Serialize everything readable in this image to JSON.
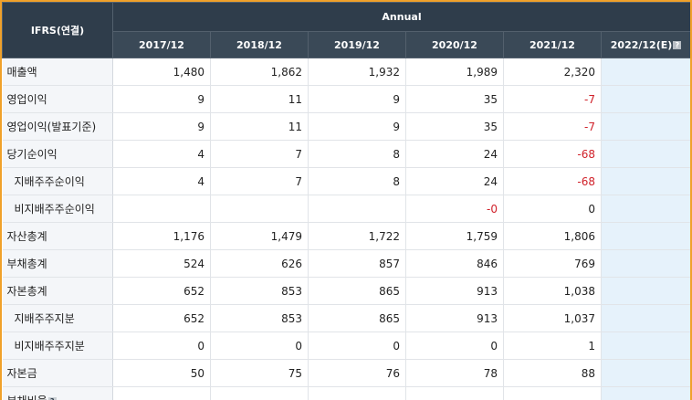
{
  "table": {
    "corner_label": "IFRS(연결)",
    "period_group": "Annual",
    "columns": [
      "2017/12",
      "2018/12",
      "2019/12",
      "2020/12",
      "2021/12",
      "2022/12(E)"
    ],
    "rows": [
      {
        "label": "매출액",
        "sub": false,
        "values": [
          "1,480",
          "1,862",
          "1,932",
          "1,989",
          "2,320",
          ""
        ]
      },
      {
        "label": "영업이익",
        "sub": false,
        "values": [
          "9",
          "11",
          "9",
          "35",
          "-7",
          ""
        ]
      },
      {
        "label": "영업이익(발표기준)",
        "sub": false,
        "values": [
          "9",
          "11",
          "9",
          "35",
          "-7",
          ""
        ]
      },
      {
        "label": "당기순이익",
        "sub": false,
        "values": [
          "4",
          "7",
          "8",
          "24",
          "-68",
          ""
        ]
      },
      {
        "label": "지배주주순이익",
        "sub": true,
        "values": [
          "4",
          "7",
          "8",
          "24",
          "-68",
          ""
        ]
      },
      {
        "label": "비지배주주순이익",
        "sub": true,
        "values": [
          "",
          "",
          "",
          "-0",
          "0",
          ""
        ]
      },
      {
        "label": "자산총계",
        "sub": false,
        "values": [
          "1,176",
          "1,479",
          "1,722",
          "1,759",
          "1,806",
          ""
        ]
      },
      {
        "label": "부채총계",
        "sub": false,
        "values": [
          "524",
          "626",
          "857",
          "846",
          "769",
          ""
        ]
      },
      {
        "label": "자본총계",
        "sub": false,
        "values": [
          "652",
          "853",
          "865",
          "913",
          "1,038",
          ""
        ]
      },
      {
        "label": "지배주주지분",
        "sub": true,
        "values": [
          "652",
          "853",
          "865",
          "913",
          "1,037",
          ""
        ]
      },
      {
        "label": "비지배주주지분",
        "sub": true,
        "values": [
          "0",
          "0",
          "0",
          "0",
          "1",
          ""
        ]
      },
      {
        "label": "자본금",
        "sub": false,
        "values": [
          "50",
          "75",
          "76",
          "78",
          "88",
          ""
        ]
      },
      {
        "label": "부채비율",
        "sub": false,
        "values": [
          "",
          "",
          "",
          "",
          "",
          ""
        ]
      }
    ],
    "colors": {
      "header_bg": "#2f3d4b",
      "frame": "#f0a12a",
      "negative": "#d0212a",
      "estimate_bg": "#e6f2fb"
    }
  }
}
